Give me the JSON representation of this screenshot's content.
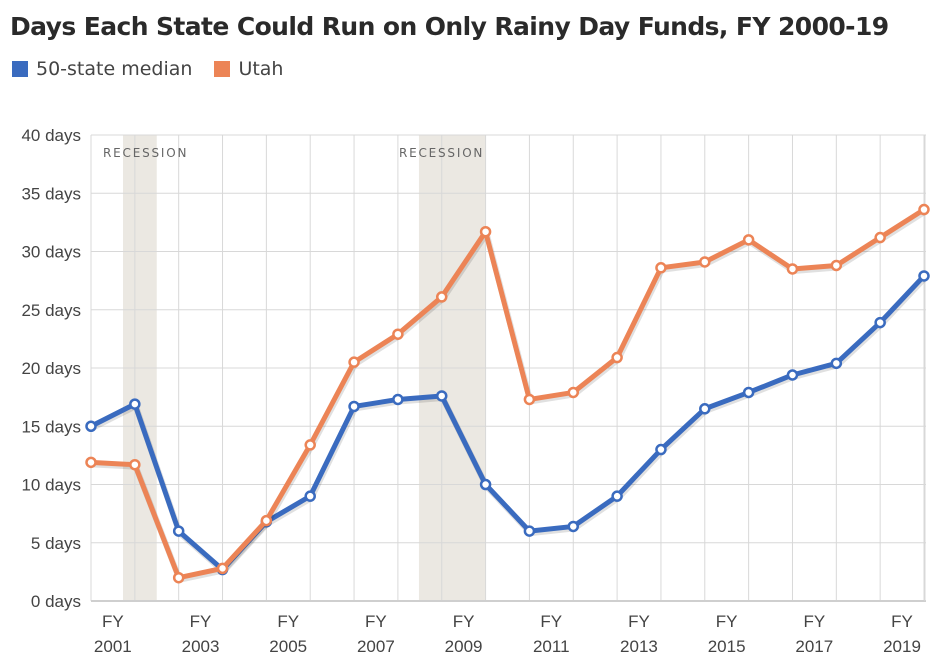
{
  "chart_data": {
    "type": "line",
    "title": "Days Each State Could Run on Only Rainy Day Funds, FY 2000-19",
    "x": [
      2000,
      2001,
      2002,
      2003,
      2004,
      2005,
      2006,
      2007,
      2008,
      2009,
      2010,
      2011,
      2012,
      2013,
      2014,
      2015,
      2016,
      2017,
      2018,
      2019
    ],
    "xlim": [
      2000,
      2019
    ],
    "ylim": [
      0,
      40
    ],
    "y_ticks": [
      "0 days",
      "5 days",
      "10 days",
      "15 days",
      "20 days",
      "25 days",
      "30 days",
      "35 days",
      "40 days"
    ],
    "x_ticks": [
      {
        "line1": "FY",
        "line2": "2001",
        "year": 2001
      },
      {
        "line1": "FY",
        "line2": "2003",
        "year": 2003
      },
      {
        "line1": "FY",
        "line2": "2005",
        "year": 2005
      },
      {
        "line1": "FY",
        "line2": "2007",
        "year": 2007
      },
      {
        "line1": "FY",
        "line2": "2009",
        "year": 2009
      },
      {
        "line1": "FY",
        "line2": "2011",
        "year": 2011
      },
      {
        "line1": "FY",
        "line2": "2013",
        "year": 2013
      },
      {
        "line1": "FY",
        "line2": "2015",
        "year": 2015
      },
      {
        "line1": "FY",
        "line2": "2017",
        "year": 2017
      },
      {
        "line1": "FY",
        "line2": "2019",
        "year": 2019
      }
    ],
    "grid": true,
    "legend_position": "top-left",
    "recessions": [
      {
        "label": "RECESSION",
        "start": 2000.73,
        "end": 2001.5
      },
      {
        "label": "RECESSION",
        "start": 2007.48,
        "end": 2009.0
      }
    ],
    "series": [
      {
        "name": "50-state median",
        "color": "#3a6bbf",
        "values": [
          15.0,
          16.9,
          6.0,
          2.7,
          6.8,
          9.0,
          16.7,
          17.3,
          17.6,
          10.0,
          6.0,
          6.4,
          9.0,
          13.0,
          16.5,
          17.9,
          19.4,
          20.4,
          23.9,
          27.9
        ]
      },
      {
        "name": "Utah",
        "color": "#ec8456",
        "values": [
          11.9,
          11.7,
          2.0,
          2.8,
          6.9,
          13.4,
          20.5,
          22.9,
          26.1,
          31.7,
          17.3,
          17.9,
          20.9,
          28.6,
          29.1,
          31.0,
          28.5,
          28.8,
          31.2,
          33.6
        ]
      }
    ]
  }
}
